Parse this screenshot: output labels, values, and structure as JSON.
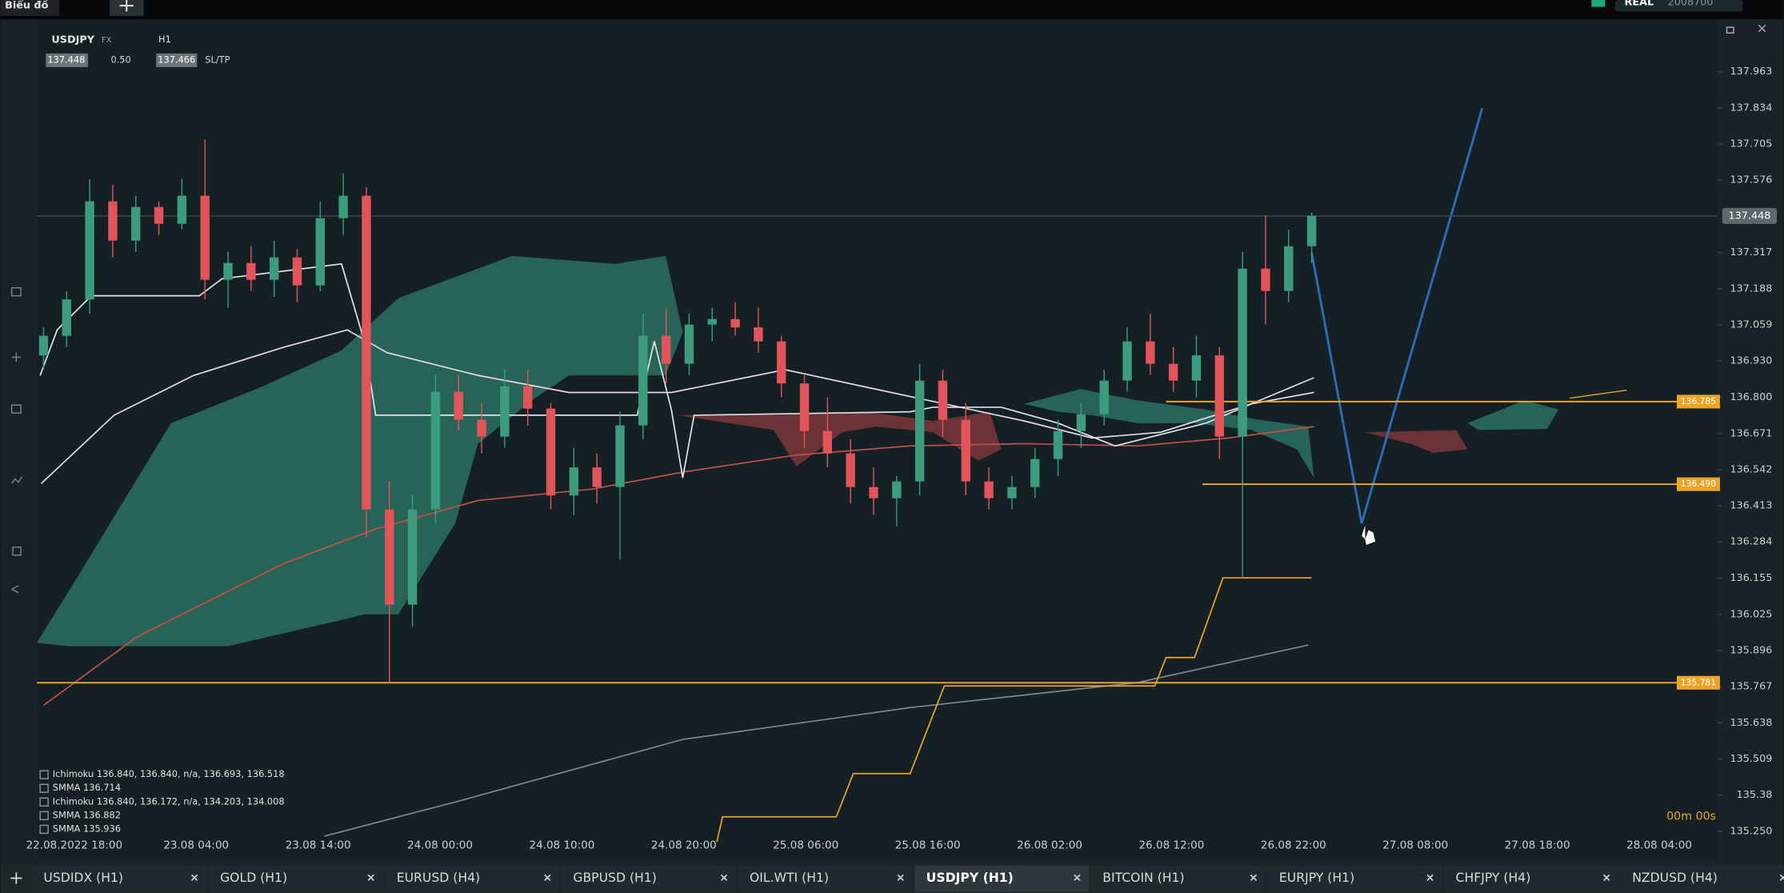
{
  "top_bar": {
    "title": "Biểu đồ",
    "account_type": "REAL",
    "account_id": "2008700"
  },
  "toolbar": {
    "symbol": "USDJPY",
    "market": "FX",
    "timeframe": "H1",
    "bid": "137.448",
    "spread": "0.50",
    "ask": "137.466",
    "sltp": "SL/TP"
  },
  "chart_data": {
    "type": "candlestick",
    "up_color": "#3d9c7e",
    "down_color": "#e0545a",
    "level_color": "#e9a42a",
    "grid": false,
    "x_labels": [
      "22.08.2022 18:00",
      "23.08 04:00",
      "23.08 14:00",
      "24.08 00:00",
      "24.08 10:00",
      "24.08 20:00",
      "25.08 06:00",
      "25.08 16:00",
      "26.08 02:00",
      "26.08 12:00",
      "26.08 22:00",
      "27.08 08:00",
      "27.08 18:00",
      "28.08 04:00"
    ],
    "ylim": [
      135.14,
      138.146
    ],
    "yticks": [
      137.963,
      137.834,
      137.705,
      137.576,
      137.317,
      137.188,
      137.059,
      {
        "value": 136.93,
        "label": "136.930"
      },
      {
        "value": 136.8,
        "label": "136.800"
      },
      136.671,
      136.542,
      136.413,
      136.284,
      136.155,
      136.025,
      135.896,
      135.767,
      135.638,
      135.509,
      135.38,
      {
        "value": 135.25,
        "label": "135.250"
      }
    ],
    "price_label": 137.448,
    "levels": [
      136.785,
      {
        "value": 136.49,
        "label": "136.490"
      },
      135.781
    ],
    "candles": [
      [
        136.95,
        137.05,
        136.9,
        137.02
      ],
      [
        137.02,
        137.18,
        136.98,
        137.15
      ],
      [
        137.15,
        137.58,
        137.1,
        137.5
      ],
      [
        137.5,
        137.56,
        137.3,
        137.36
      ],
      [
        137.36,
        137.52,
        137.32,
        137.48
      ],
      [
        137.48,
        137.5,
        137.38,
        137.42
      ],
      [
        137.42,
        137.58,
        137.4,
        137.52
      ],
      [
        137.52,
        137.72,
        137.15,
        137.22
      ],
      [
        137.22,
        137.32,
        137.12,
        137.28
      ],
      [
        137.28,
        137.34,
        137.18,
        137.22
      ],
      [
        137.22,
        137.36,
        137.16,
        137.3
      ],
      [
        137.3,
        137.33,
        137.14,
        137.2
      ],
      [
        137.2,
        137.5,
        137.18,
        137.44
      ],
      [
        137.44,
        137.6,
        137.38,
        137.52
      ],
      [
        137.52,
        137.55,
        136.3,
        136.4
      ],
      [
        136.4,
        136.5,
        135.78,
        136.06
      ],
      [
        136.06,
        136.45,
        135.98,
        136.4
      ],
      [
        136.4,
        136.88,
        136.35,
        136.82
      ],
      [
        136.82,
        136.88,
        136.68,
        136.72
      ],
      [
        136.72,
        136.78,
        136.6,
        136.66
      ],
      [
        136.66,
        136.9,
        136.62,
        136.84
      ],
      [
        136.84,
        136.9,
        136.7,
        136.76
      ],
      [
        136.76,
        136.78,
        136.4,
        136.45
      ],
      [
        136.45,
        136.62,
        136.38,
        136.55
      ],
      [
        136.55,
        136.6,
        136.42,
        136.48
      ],
      [
        136.48,
        136.75,
        136.22,
        136.7
      ],
      [
        136.7,
        137.1,
        136.65,
        137.02
      ],
      [
        137.02,
        137.12,
        136.85,
        136.92
      ],
      [
        136.92,
        137.1,
        136.88,
        137.06
      ],
      [
        137.06,
        137.12,
        137.0,
        137.08
      ],
      [
        137.08,
        137.14,
        137.02,
        137.05
      ],
      [
        137.05,
        137.12,
        136.96,
        137.0
      ],
      [
        137.0,
        137.02,
        136.8,
        136.85
      ],
      [
        136.85,
        136.88,
        136.62,
        136.68
      ],
      [
        136.68,
        136.8,
        136.55,
        136.6
      ],
      [
        136.6,
        136.65,
        136.42,
        136.48
      ],
      [
        136.48,
        136.55,
        136.38,
        136.44
      ],
      [
        136.44,
        136.52,
        136.34,
        136.5
      ],
      [
        136.5,
        136.92,
        136.45,
        136.86
      ],
      [
        136.86,
        136.9,
        136.66,
        136.72
      ],
      [
        136.72,
        136.78,
        136.45,
        136.5
      ],
      [
        136.5,
        136.55,
        136.4,
        136.44
      ],
      [
        136.44,
        136.52,
        136.4,
        136.48
      ],
      [
        136.48,
        136.62,
        136.44,
        136.58
      ],
      [
        136.58,
        136.72,
        136.52,
        136.68
      ],
      [
        136.68,
        136.78,
        136.62,
        136.74
      ],
      [
        136.74,
        136.9,
        136.7,
        136.86
      ],
      [
        136.86,
        137.05,
        136.82,
        137.0
      ],
      [
        137.0,
        137.1,
        136.88,
        136.92
      ],
      [
        136.92,
        136.98,
        136.82,
        136.86
      ],
      [
        136.86,
        137.02,
        136.8,
        136.95
      ],
      [
        136.95,
        136.98,
        136.58,
        136.66
      ],
      [
        136.66,
        137.32,
        136.16,
        137.26
      ],
      [
        137.26,
        137.45,
        137.06,
        137.18
      ],
      [
        137.18,
        137.4,
        137.14,
        137.34
      ],
      [
        137.34,
        137.46,
        137.28,
        137.448
      ]
    ],
    "legend": [
      "Ichimoku 136.840, 136.840, n/a, 136.693, 136.518",
      "SMMA 136.714",
      "Ichimoku 136.840, 136.172, n/a, 134.203, 134.008",
      "SMMA 136.882",
      "SMMA 135.936"
    ],
    "timer": "00m 00s"
  },
  "tabs": [
    "USDIDX (H1)",
    "GOLD (H1)",
    "EURUSD (H4)",
    "GBPUSD (H1)",
    "OIL.WTI (H1)",
    "USDJPY (H1)",
    "BITCOIN (H1)",
    "EURJPY (H1)",
    "CHFJPY (H4)",
    "NZDUSD (H4)"
  ],
  "active_tab": 5
}
